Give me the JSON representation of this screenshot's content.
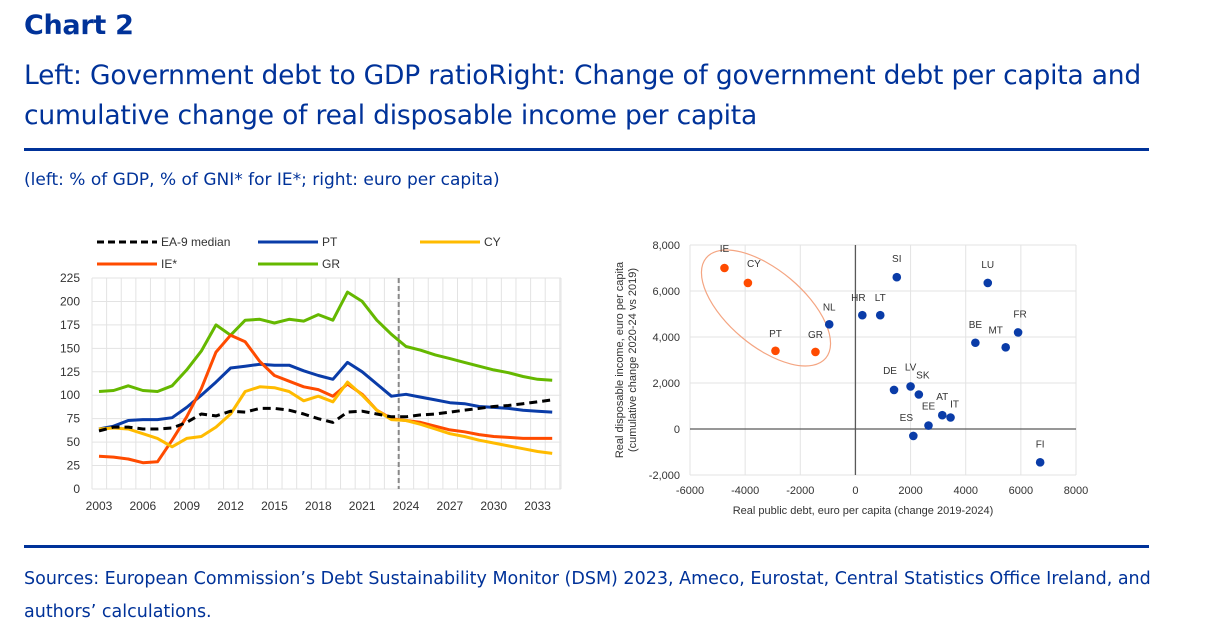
{
  "header": {
    "chart_label": "Chart 2",
    "title": "Left: Government debt to GDP ratioRight: Change of government debt per capita and cumulative change of real disposable income per capita",
    "units": "(left: % of GDP, % of GNI* for IE*; right: euro per capita)"
  },
  "footer": {
    "sources": "Sources: European Commission’s Debt Sustainability Monitor (DSM) 2023, Ameco, Eurostat, Central Statistics Office Ireland, and authors’ calculations."
  },
  "colors": {
    "brand": "#003299",
    "ea9_median": "#000000",
    "pt": "#0a3ca8",
    "cy": "#ffbb00",
    "ie": "#ff4b00",
    "gr": "#65b800",
    "scatter_highlight": "#ff4b00",
    "scatter_default": "#0a3ca8",
    "ellipse": "#f4a582"
  },
  "chart_data": [
    {
      "type": "line",
      "title": "Government debt to GDP ratio",
      "xlabel": "",
      "ylabel": "",
      "ylim": [
        0,
        225
      ],
      "yticks": [
        0,
        25,
        50,
        75,
        100,
        125,
        150,
        175,
        200,
        225
      ],
      "xtick_labels": [
        "2003",
        "2006",
        "2009",
        "2012",
        "2015",
        "2018",
        "2021",
        "2024",
        "2027",
        "2030",
        "2033"
      ],
      "grid": true,
      "legend_position": "top",
      "projection_marker_between": [
        2023,
        2024
      ],
      "x": [
        2003,
        2004,
        2005,
        2006,
        2007,
        2008,
        2009,
        2010,
        2011,
        2012,
        2013,
        2014,
        2015,
        2016,
        2017,
        2018,
        2019,
        2020,
        2021,
        2022,
        2023,
        2024,
        2025,
        2026,
        2027,
        2028,
        2029,
        2030,
        2031,
        2032,
        2033,
        2034
      ],
      "series": [
        {
          "name": "EA-9 median",
          "key": "ea9_median",
          "dashed": true,
          "values": [
            62,
            66,
            66,
            64,
            64,
            65,
            71,
            80,
            78,
            83,
            82,
            86,
            86,
            84,
            80,
            75,
            71,
            82,
            83,
            80,
            77,
            77,
            79,
            80,
            82,
            84,
            86,
            88,
            89,
            91,
            93,
            95
          ]
        },
        {
          "name": "PT",
          "key": "pt",
          "dashed": false,
          "values": [
            64,
            67,
            73,
            74,
            74,
            76,
            87,
            100,
            114,
            129,
            131,
            133,
            132,
            132,
            126,
            121,
            117,
            135,
            125,
            112,
            99,
            101,
            98,
            95,
            92,
            91,
            88,
            87,
            86,
            84,
            83,
            82
          ]
        },
        {
          "name": "CY",
          "key": "cy",
          "dashed": false,
          "values": [
            64,
            65,
            64,
            59,
            54,
            45,
            54,
            56,
            66,
            80,
            104,
            109,
            108,
            104,
            94,
            99,
            93,
            114,
            100,
            84,
            74,
            73,
            69,
            64,
            59,
            56,
            52,
            49,
            46,
            43,
            40,
            38
          ]
        },
        {
          "name": "IE*",
          "key": "ie",
          "dashed": false,
          "values": [
            35,
            34,
            32,
            28,
            29,
            52,
            77,
            107,
            146,
            164,
            157,
            136,
            121,
            115,
            109,
            106,
            99,
            112,
            101,
            84,
            75,
            73,
            71,
            67,
            63,
            61,
            58,
            56,
            55,
            54,
            54,
            54
          ]
        },
        {
          "name": "GR",
          "key": "gr",
          "dashed": false,
          "values": [
            104,
            105,
            110,
            105,
            104,
            110,
            127,
            147,
            175,
            164,
            180,
            181,
            177,
            181,
            179,
            186,
            180,
            210,
            200,
            180,
            165,
            152,
            148,
            143,
            139,
            135,
            131,
            127,
            124,
            120,
            117,
            116
          ]
        }
      ]
    },
    {
      "type": "scatter",
      "title": "Change of government debt per capita vs cumulative change of real disposable income per capita",
      "xlabel": "Real public debt, euro per capita (change 2019-2024)",
      "ylabel": "Real disposable income, euro per capita (cumulative change 2020-24 vs 2019)",
      "ylabel_line1": "Real disposable income, euro per capita",
      "ylabel_line2": "(cumulative change 2020-24 vs 2019)",
      "xlim": [
        -6000,
        8000
      ],
      "ylim": [
        -2000,
        8000
      ],
      "xtick_labels": [
        "-6000",
        "-4000",
        "-2000",
        "0",
        "2000",
        "4000",
        "6000",
        "8000"
      ],
      "xticks": [
        -6000,
        -4000,
        -2000,
        0,
        2000,
        4000,
        6000,
        8000
      ],
      "ytick_labels": [
        "-2,000",
        "0",
        "2,000",
        "4,000",
        "6,000",
        "8,000"
      ],
      "yticks": [
        -2000,
        0,
        2000,
        4000,
        6000,
        8000
      ],
      "grid": true,
      "highlight_group": [
        "IE",
        "CY",
        "PT",
        "GR"
      ],
      "points": [
        {
          "label": "IE",
          "x": -4750,
          "y": 7000,
          "highlight": true
        },
        {
          "label": "CY",
          "x": -3900,
          "y": 6350,
          "highlight": true
        },
        {
          "label": "PT",
          "x": -2900,
          "y": 3400,
          "highlight": true
        },
        {
          "label": "GR",
          "x": -1450,
          "y": 3350,
          "highlight": true
        },
        {
          "label": "NL",
          "x": -950,
          "y": 4550,
          "highlight": false
        },
        {
          "label": "HR",
          "x": 250,
          "y": 4950,
          "highlight": false
        },
        {
          "label": "LT",
          "x": 900,
          "y": 4950,
          "highlight": false
        },
        {
          "label": "SI",
          "x": 1500,
          "y": 6600,
          "highlight": false
        },
        {
          "label": "LU",
          "x": 4800,
          "y": 6350,
          "highlight": false
        },
        {
          "label": "BE",
          "x": 4350,
          "y": 3750,
          "highlight": false
        },
        {
          "label": "MT",
          "x": 5450,
          "y": 3550,
          "highlight": false
        },
        {
          "label": "FR",
          "x": 5900,
          "y": 4200,
          "highlight": false
        },
        {
          "label": "DE",
          "x": 1400,
          "y": 1700,
          "highlight": false
        },
        {
          "label": "LV",
          "x": 2000,
          "y": 1850,
          "highlight": false
        },
        {
          "label": "SK",
          "x": 2300,
          "y": 1500,
          "highlight": false
        },
        {
          "label": "AT",
          "x": 3150,
          "y": 600,
          "highlight": false
        },
        {
          "label": "IT",
          "x": 3450,
          "y": 500,
          "highlight": false
        },
        {
          "label": "EE",
          "x": 2650,
          "y": 150,
          "highlight": false
        },
        {
          "label": "ES",
          "x": 2100,
          "y": -300,
          "highlight": false
        },
        {
          "label": "FI",
          "x": 6700,
          "y": -1450,
          "highlight": false
        }
      ]
    }
  ]
}
